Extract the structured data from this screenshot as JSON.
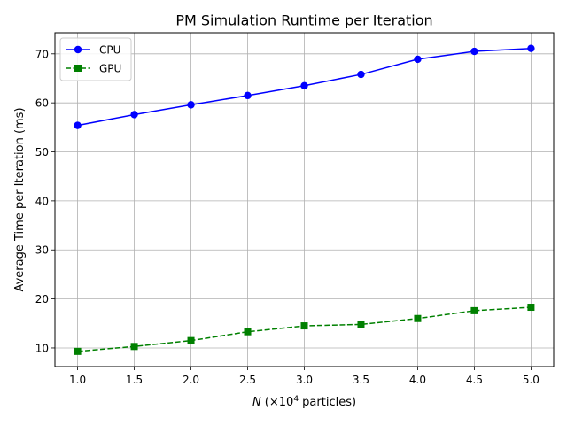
{
  "chart_data": {
    "type": "line",
    "title": "PM Simulation Runtime per Iteration",
    "xlabel_italic": "N",
    "xlabel_rest": " (×10",
    "xlabel_exp": "4",
    "xlabel_tail": " particles)",
    "ylabel": "Average Time per Iteration (ms)",
    "x": [
      1.0,
      1.5,
      2.0,
      2.5,
      3.0,
      3.5,
      4.0,
      4.5,
      5.0
    ],
    "xlim": [
      0.8,
      5.2
    ],
    "ylim": [
      6.2,
      74.3
    ],
    "xticks": [
      1.0,
      1.5,
      2.0,
      2.5,
      3.0,
      3.5,
      4.0,
      4.5,
      5.0
    ],
    "xtick_labels": [
      "1.0",
      "1.5",
      "2.0",
      "2.5",
      "3.0",
      "3.5",
      "4.0",
      "4.5",
      "5.0"
    ],
    "yticks": [
      10,
      20,
      30,
      40,
      50,
      60,
      70
    ],
    "ytick_labels": [
      "10",
      "20",
      "30",
      "40",
      "50",
      "60",
      "70"
    ],
    "grid": true,
    "legend_position": "top-left",
    "series": [
      {
        "name": "CPU",
        "color": "#0000ff",
        "marker": "circle",
        "linestyle": "solid",
        "values": [
          55.4,
          57.6,
          59.6,
          61.5,
          63.5,
          65.8,
          68.9,
          70.5,
          71.1
        ]
      },
      {
        "name": "GPU",
        "color": "#008000",
        "marker": "square",
        "linestyle": "dashed",
        "values": [
          9.3,
          10.3,
          11.5,
          13.3,
          14.5,
          14.8,
          16.0,
          17.6,
          18.3
        ]
      }
    ]
  }
}
